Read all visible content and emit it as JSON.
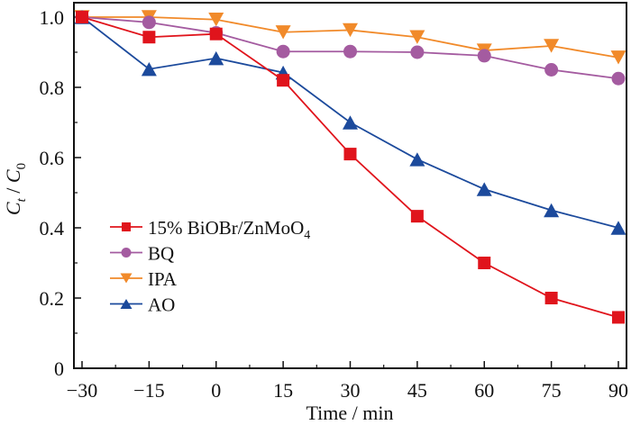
{
  "chart_data": {
    "type": "line",
    "title": "",
    "xlabel": "Time / min",
    "ylabel": {
      "main": "C",
      "sub1": "t",
      "sep": " / ",
      "main2": "C",
      "sub2": "0"
    },
    "x": [
      -30,
      -15,
      0,
      15,
      30,
      45,
      60,
      75,
      90
    ],
    "xlim": [
      -30,
      90
    ],
    "ylim": [
      0,
      1.0
    ],
    "xticks": [
      -30,
      -15,
      0,
      15,
      30,
      45,
      60,
      75,
      90
    ],
    "xtick_labels": [
      "−30",
      "−15",
      "0",
      "15",
      "30",
      "45",
      "60",
      "75",
      "90"
    ],
    "yticks": [
      0,
      0.2,
      0.4,
      0.6,
      0.8,
      1.0
    ],
    "ytick_labels": [
      "0",
      "0.2",
      "0.4",
      "0.6",
      "0.8",
      "1.0"
    ],
    "grid": false,
    "legend_position": "center-left",
    "series": [
      {
        "name": "15% BiOBr/ZnMoO4",
        "label_main": "15% BiOBr/ZnMoO",
        "label_sub": "4",
        "color": "#e0141c",
        "marker": "square",
        "values": [
          1.0,
          0.943,
          0.952,
          0.82,
          0.61,
          0.433,
          0.3,
          0.2,
          0.145
        ]
      },
      {
        "name": "BQ",
        "label_main": "BQ",
        "label_sub": "",
        "color": "#a45ba0",
        "marker": "circle",
        "values": [
          1.0,
          0.985,
          0.955,
          0.902,
          0.902,
          0.9,
          0.89,
          0.85,
          0.825
        ]
      },
      {
        "name": "IPA",
        "label_main": "IPA",
        "label_sub": "",
        "color": "#f18a2a",
        "marker": "triangle-down",
        "values": [
          1.0,
          1.0,
          0.993,
          0.957,
          0.963,
          0.943,
          0.905,
          0.918,
          0.885
        ]
      },
      {
        "name": "AO",
        "label_main": "AO",
        "label_sub": "",
        "color": "#1c4a9c",
        "marker": "triangle-up",
        "values": [
          1.0,
          0.852,
          0.883,
          0.842,
          0.7,
          0.595,
          0.51,
          0.45,
          0.4
        ]
      }
    ]
  }
}
